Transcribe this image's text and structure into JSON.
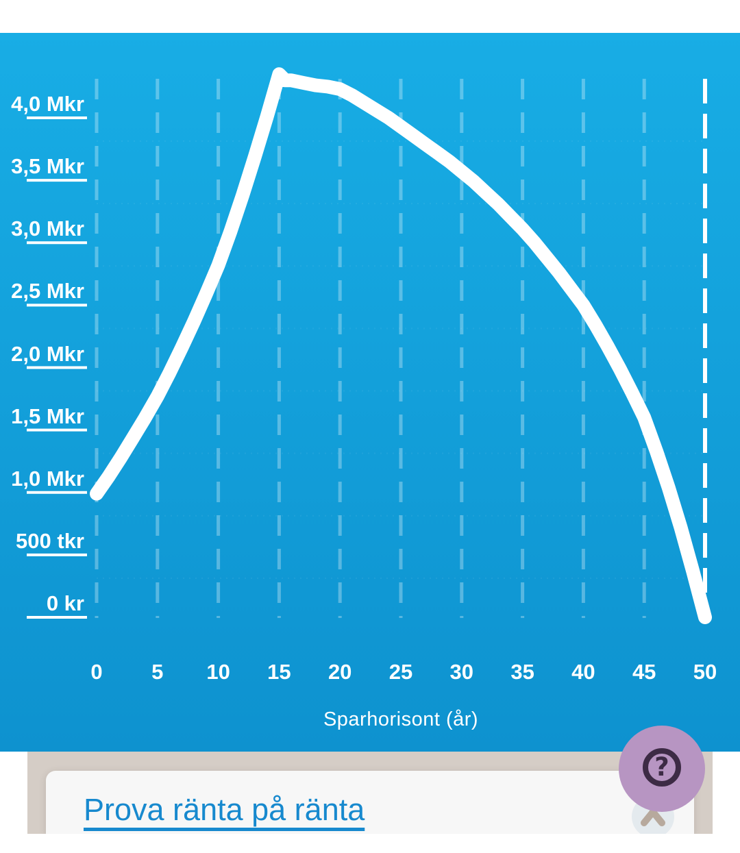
{
  "chart": {
    "y_labels": [
      "4,0 Mkr",
      "3,5 Mkr",
      "3,0 Mkr",
      "2,5 Mkr",
      "2,0 Mkr",
      "1,5 Mkr",
      "1,0 Mkr",
      "500 tkr",
      "0 kr"
    ],
    "x_labels": [
      "0",
      "5",
      "10",
      "15",
      "20",
      "25",
      "30",
      "35",
      "40",
      "45",
      "50"
    ],
    "x_axis_title": "Sparhorisont (år)"
  },
  "chart_data": {
    "type": "line",
    "title": "",
    "xlabel": "Sparhorisont (år)",
    "ylabel": "",
    "x_ticks": [
      0,
      5,
      10,
      15,
      20,
      25,
      30,
      35,
      40,
      45,
      50
    ],
    "y_tick_labels": [
      "4,0 Mkr",
      "3,5 Mkr",
      "3,0 Mkr",
      "2,5 Mkr",
      "2,0 Mkr",
      "1,5 Mkr",
      "1,0 Mkr",
      "500 tkr",
      "0 kr"
    ],
    "y_tick_values_kr": [
      4000000,
      3500000,
      3000000,
      2500000,
      2000000,
      1500000,
      1000000,
      500000,
      0
    ],
    "xlim": [
      0,
      50
    ],
    "ylim_mkr": [
      0,
      4.45
    ],
    "grid": "vertical-dashed",
    "highlight_year": 50,
    "series": [
      {
        "name": "savings-projection",
        "unit": "Mkr",
        "points": [
          [
            0,
            0.99
          ],
          [
            1,
            1.13
          ],
          [
            2,
            1.28
          ],
          [
            3,
            1.44
          ],
          [
            4,
            1.6
          ],
          [
            5,
            1.77
          ],
          [
            6,
            1.96
          ],
          [
            7,
            2.16
          ],
          [
            8,
            2.37
          ],
          [
            9,
            2.59
          ],
          [
            10,
            2.82
          ],
          [
            11,
            3.09
          ],
          [
            12,
            3.38
          ],
          [
            13,
            3.69
          ],
          [
            14,
            4.01
          ],
          [
            15,
            4.35
          ],
          [
            15.5,
            4.3
          ],
          [
            16,
            4.3
          ],
          [
            17,
            4.28
          ],
          [
            18,
            4.26
          ],
          [
            19,
            4.25
          ],
          [
            20,
            4.23
          ],
          [
            21,
            4.18
          ],
          [
            22,
            4.12
          ],
          [
            23,
            4.06
          ],
          [
            24,
            4.0
          ],
          [
            25,
            3.93
          ],
          [
            26,
            3.86
          ],
          [
            27,
            3.79
          ],
          [
            28,
            3.72
          ],
          [
            29,
            3.65
          ],
          [
            30,
            3.57
          ],
          [
            31,
            3.49
          ],
          [
            32,
            3.4
          ],
          [
            33,
            3.31
          ],
          [
            34,
            3.21
          ],
          [
            35,
            3.11
          ],
          [
            36,
            3.0
          ],
          [
            37,
            2.88
          ],
          [
            38,
            2.76
          ],
          [
            39,
            2.63
          ],
          [
            40,
            2.5
          ],
          [
            41,
            2.34
          ],
          [
            42,
            2.17
          ],
          [
            43,
            1.99
          ],
          [
            44,
            1.8
          ],
          [
            45,
            1.6
          ],
          [
            46,
            1.33
          ],
          [
            47,
            1.04
          ],
          [
            48,
            0.72
          ],
          [
            49,
            0.37
          ],
          [
            50,
            0.0
          ]
        ]
      }
    ]
  },
  "footer": {
    "link_label": "Prova ränta på ränta",
    "help_icon": "question-mark-icon",
    "collapse_icon": "chevron-up-icon"
  },
  "colors": {
    "chart_bg_top": "#18ade5",
    "chart_bg_bottom": "#0e92cf",
    "curve": "#ffffff",
    "grid_faint": "rgba(255,255,255,0.30)",
    "marker_line": "#ffffff",
    "axis_text": "#ffffff",
    "beige_panel": "#d5cdc6",
    "card_bg": "#f7f7f7",
    "link_blue": "#1789ce",
    "help_bg": "#b795c2",
    "help_fg": "#3d2b45",
    "chevron_bg": "#e4eaee",
    "chevron_fg": "#b7a99d"
  }
}
